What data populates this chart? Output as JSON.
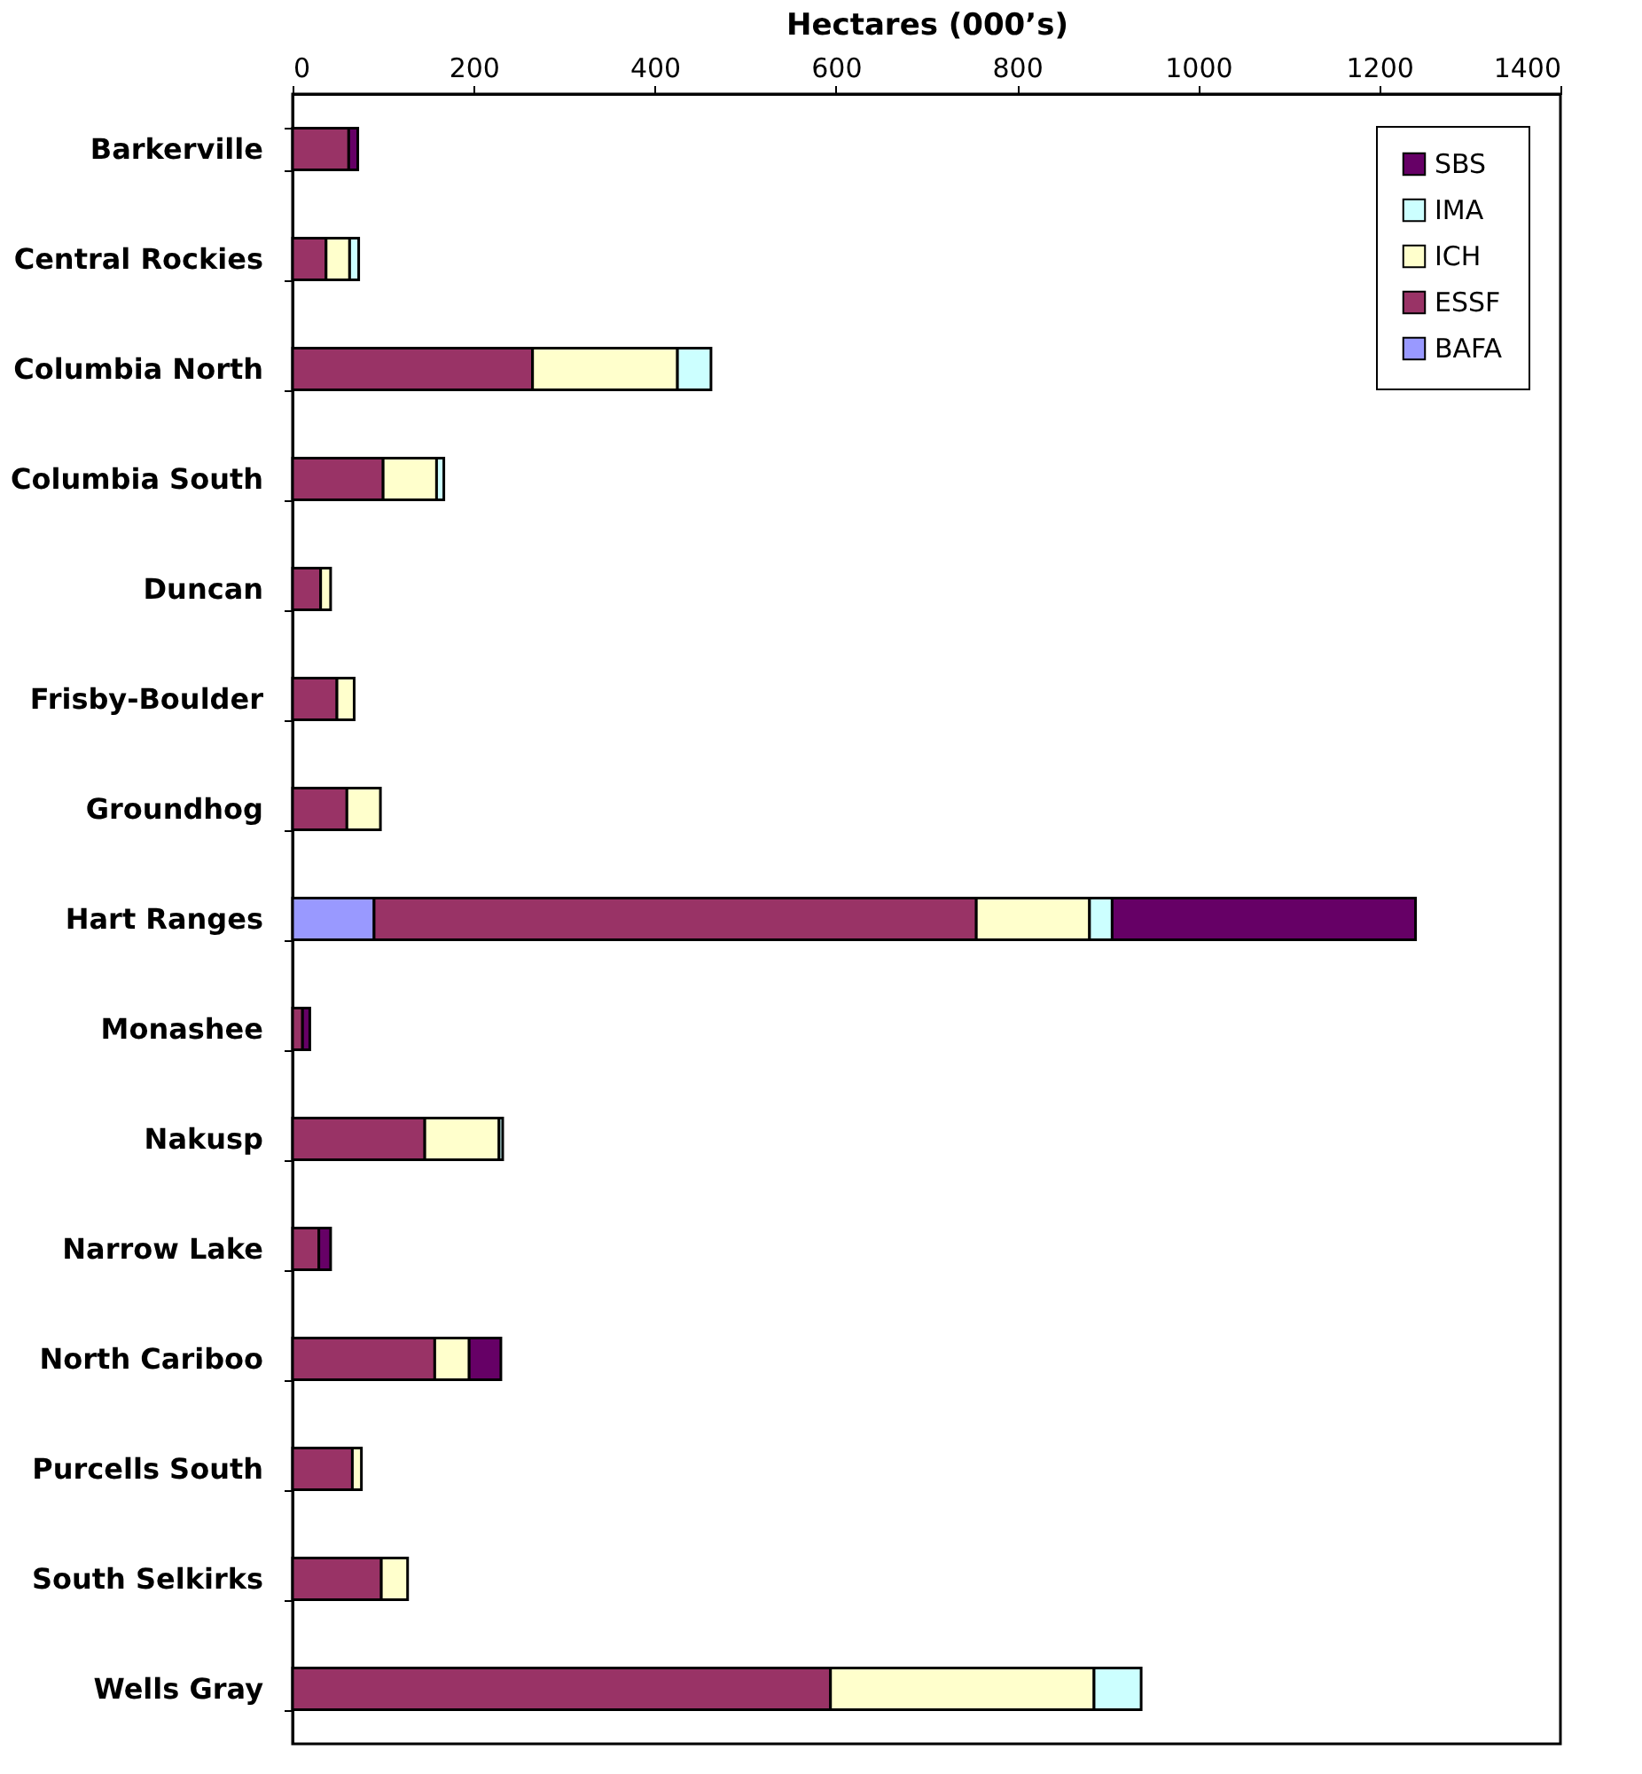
{
  "chart_data": {
    "type": "bar",
    "orientation": "horizontal",
    "stacked": true,
    "xlabel": "Hectares (000’s)",
    "categories": [
      "Barkerville",
      "Central Rockies",
      "Columbia North",
      "Columbia South",
      "Duncan",
      "Frisby-Boulder",
      "Groundhog",
      "Hart Ranges",
      "Monashee",
      "Nakusp",
      "Narrow Lake",
      "North Cariboo",
      "Purcells South",
      "South Selkirks",
      "Wells Gray"
    ],
    "series": [
      {
        "name": "BAFA",
        "color": "#9999ff",
        "values": [
          null,
          null,
          null,
          null,
          null,
          null,
          null,
          90,
          null,
          null,
          null,
          null,
          null,
          null,
          null
        ]
      },
      {
        "name": "ESSF",
        "color": "#993366",
        "values": [
          62,
          37,
          265,
          100,
          31,
          49,
          60,
          665,
          11,
          146,
          29,
          157,
          66,
          98,
          594
        ]
      },
      {
        "name": "ICH",
        "color": "#ffffcc",
        "values": [
          null,
          26,
          160,
          59,
          11,
          19,
          37,
          125,
          null,
          82,
          null,
          38,
          10,
          29,
          291
        ]
      },
      {
        "name": "IMA",
        "color": "#ccffff",
        "values": [
          null,
          10,
          37,
          8,
          null,
          null,
          null,
          25,
          null,
          4,
          null,
          null,
          null,
          null,
          52
        ]
      },
      {
        "name": "SBS",
        "color": "#660066",
        "values": [
          10,
          null,
          null,
          null,
          null,
          null,
          null,
          335,
          8,
          null,
          13,
          35,
          null,
          null,
          null
        ]
      }
    ],
    "xlim": [
      0,
      1400
    ],
    "xticks": [
      0,
      200,
      400,
      600,
      800,
      1000,
      1200,
      1400
    ],
    "grid": false,
    "legend": "top right"
  }
}
